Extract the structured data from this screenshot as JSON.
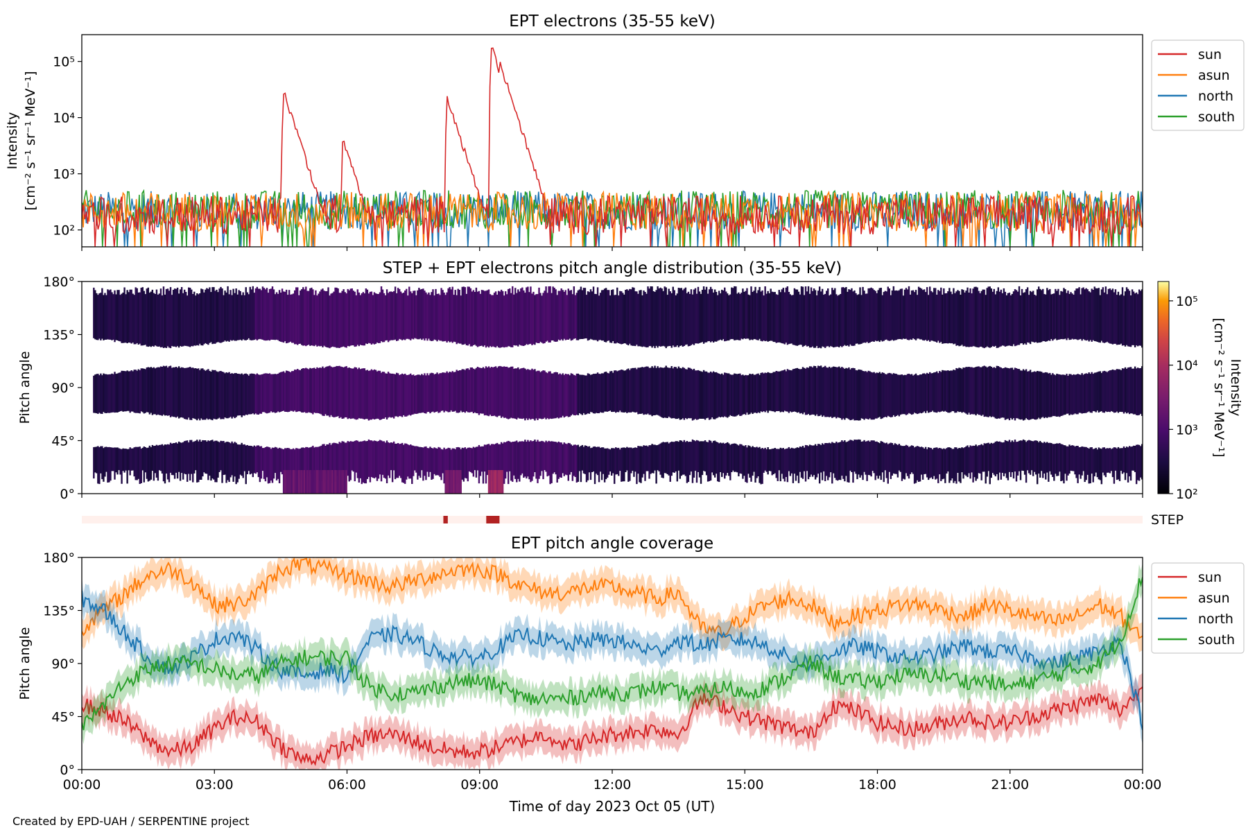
{
  "colors": {
    "sun": "#d62728",
    "asun": "#ff7f0e",
    "north": "#1f77b4",
    "south": "#2ca02c",
    "step_on": "#b22222",
    "step_off": "#fff0ec"
  },
  "credit": "Created by EPD-UAH / SERPENTINE project",
  "xaxis": {
    "label": "Time of day 2023 Oct 05 (UT)",
    "range_hours": [
      0,
      24
    ],
    "tick_hours": [
      0,
      3,
      6,
      9,
      12,
      15,
      18,
      21,
      24
    ],
    "tick_labels": [
      "00:00",
      "03:00",
      "06:00",
      "09:00",
      "12:00",
      "15:00",
      "18:00",
      "21:00",
      "00:00"
    ]
  },
  "chart_data": [
    {
      "type": "line",
      "title": "EPT electrons (35-55 keV)",
      "ylabel_line1": "Intensity",
      "ylabel_line2": "[cm⁻² s⁻¹ sr⁻¹ MeV⁻¹]",
      "yscale": "log",
      "ylim": [
        50,
        300000
      ],
      "ytick_values": [
        100,
        1000,
        10000,
        100000
      ],
      "ytick_labels": [
        "10²",
        "10³",
        "10⁴",
        "10⁵"
      ],
      "legend_position": "outside-right",
      "series": [
        {
          "name": "sun",
          "color_key": "sun",
          "baseline": 200,
          "events": [
            {
              "t": 4.55,
              "peak": 32000
            },
            {
              "t": 4.75,
              "peak": 9000
            },
            {
              "t": 5.9,
              "peak": 4200
            },
            {
              "t": 8.25,
              "peak": 25000
            },
            {
              "t": 8.4,
              "peak": 3500
            },
            {
              "t": 9.25,
              "peak": 200000
            },
            {
              "t": 9.45,
              "peak": 100000
            },
            {
              "t": 9.65,
              "peak": 12000
            },
            {
              "t": 9.9,
              "peak": 2800
            }
          ]
        },
        {
          "name": "asun",
          "color_key": "asun",
          "baseline": 230
        },
        {
          "name": "north",
          "color_key": "north",
          "baseline": 240
        },
        {
          "name": "south",
          "color_key": "south",
          "baseline": 250
        }
      ]
    },
    {
      "type": "heatmap",
      "title": "STEP + EPT electrons pitch angle distribution (35-55 keV)",
      "ylabel": "Pitch angle",
      "ylim": [
        0,
        180
      ],
      "ytick_values": [
        0,
        45,
        90,
        135,
        180
      ],
      "ytick_labels": [
        "0°",
        "45°",
        "90°",
        "135°",
        "180°"
      ],
      "colorbar": {
        "label_line1": "Intensity",
        "label_line2": "[cm⁻² s⁻¹ sr⁻¹ MeV⁻¹]",
        "scale": "log",
        "range": [
          100,
          200000
        ],
        "tick_values": [
          100,
          1000,
          10000,
          100000
        ],
        "tick_labels": [
          "10²",
          "10³",
          "10⁴",
          "10⁵"
        ]
      },
      "enhancements": [
        {
          "t0": 4.55,
          "t1": 6.0,
          "level": 2000
        },
        {
          "t0": 8.2,
          "t1": 8.6,
          "level": 3000
        },
        {
          "t0": 9.2,
          "t1": 9.55,
          "level": 8000
        }
      ]
    },
    {
      "type": "bar",
      "label": "STEP",
      "on_intervals": [
        [
          8.18,
          8.28
        ],
        [
          9.15,
          9.45
        ]
      ]
    },
    {
      "type": "area",
      "title": "EPT pitch angle coverage",
      "ylabel": "Pitch angle",
      "ylim": [
        0,
        180
      ],
      "ytick_values": [
        0,
        45,
        90,
        135,
        180
      ],
      "ytick_labels": [
        "0°",
        "45°",
        "90°",
        "135°",
        "180°"
      ],
      "legend_position": "outside-right",
      "series": [
        {
          "name": "sun",
          "color_key": "sun",
          "x": [
            0,
            0.5,
            1,
            1.5,
            2,
            2.5,
            3,
            3.5,
            4,
            4.5,
            5,
            5.5,
            6,
            6.5,
            7,
            7.5,
            8,
            8.5,
            9,
            9.5,
            10,
            10.5,
            11,
            11.5,
            12,
            12.5,
            13,
            13.5,
            14,
            14.5,
            15,
            15.5,
            16,
            16.5,
            17,
            17.5,
            18,
            18.5,
            19,
            19.5,
            20,
            20.5,
            21,
            21.5,
            22,
            22.5,
            23,
            23.5,
            24
          ],
          "values": [
            55,
            50,
            40,
            25,
            15,
            20,
            35,
            45,
            40,
            20,
            8,
            12,
            20,
            28,
            30,
            25,
            18,
            15,
            15,
            20,
            25,
            30,
            20,
            25,
            30,
            32,
            35,
            30,
            60,
            55,
            45,
            40,
            35,
            30,
            55,
            50,
            40,
            35,
            35,
            40,
            45,
            40,
            40,
            45,
            50,
            55,
            60,
            50,
            70
          ],
          "halfwidth": 12
        },
        {
          "name": "asun",
          "color_key": "asun",
          "x": [
            0,
            0.5,
            1,
            1.5,
            2,
            2.5,
            3,
            3.5,
            4,
            4.5,
            5,
            5.5,
            6,
            6.5,
            7,
            7.5,
            8,
            8.5,
            9,
            9.5,
            10,
            10.5,
            11,
            11.5,
            12,
            12.5,
            13,
            13.5,
            14,
            14.5,
            15,
            15.5,
            16,
            16.5,
            17,
            17.5,
            18,
            18.5,
            19,
            19.5,
            20,
            20.5,
            21,
            21.5,
            22,
            22.5,
            23,
            23.5,
            24
          ],
          "values": [
            120,
            135,
            150,
            165,
            170,
            160,
            140,
            140,
            150,
            170,
            175,
            170,
            165,
            160,
            155,
            160,
            165,
            170,
            170,
            165,
            155,
            150,
            150,
            155,
            155,
            150,
            145,
            150,
            120,
            115,
            130,
            140,
            145,
            140,
            125,
            130,
            135,
            140,
            140,
            135,
            130,
            140,
            135,
            130,
            125,
            130,
            140,
            130,
            110
          ],
          "halfwidth": 12
        },
        {
          "name": "north",
          "color_key": "north",
          "x": [
            0,
            0.5,
            1,
            1.5,
            2,
            2.5,
            3,
            3.5,
            4,
            4.5,
            5,
            5.5,
            6,
            6.5,
            7,
            7.5,
            8,
            8.5,
            9,
            9.5,
            10,
            10.5,
            11,
            11.5,
            12,
            12.5,
            13,
            13.5,
            14,
            14.5,
            15,
            15.5,
            16,
            16.5,
            17,
            17.5,
            18,
            18.5,
            19,
            19.5,
            20,
            20.5,
            21,
            21.5,
            22,
            22.5,
            23,
            23.5,
            24
          ],
          "values": [
            145,
            135,
            115,
            95,
            85,
            95,
            110,
            115,
            100,
            85,
            80,
            85,
            80,
            110,
            115,
            110,
            100,
            95,
            95,
            105,
            115,
            110,
            105,
            110,
            110,
            105,
            100,
            110,
            105,
            110,
            110,
            105,
            95,
            90,
            100,
            105,
            100,
            95,
            95,
            100,
            105,
            100,
            100,
            95,
            90,
            95,
            100,
            110,
            40
          ],
          "halfwidth": 12
        },
        {
          "name": "south",
          "color_key": "south",
          "x": [
            0,
            0.5,
            1,
            1.5,
            2,
            2.5,
            3,
            3.5,
            4,
            4.5,
            5,
            5.5,
            6,
            6.5,
            7,
            7.5,
            8,
            8.5,
            9,
            9.5,
            10,
            10.5,
            11,
            11.5,
            12,
            12.5,
            13,
            13.5,
            14,
            14.5,
            15,
            15.5,
            16,
            16.5,
            17,
            17.5,
            18,
            18.5,
            19,
            19.5,
            20,
            20.5,
            21,
            21.5,
            22,
            22.5,
            23,
            23.5,
            24
          ],
          "values": [
            35,
            55,
            75,
            85,
            90,
            90,
            85,
            80,
            80,
            90,
            95,
            95,
            95,
            70,
            65,
            65,
            70,
            75,
            75,
            70,
            60,
            60,
            60,
            65,
            65,
            65,
            70,
            65,
            65,
            70,
            65,
            70,
            80,
            90,
            80,
            75,
            75,
            80,
            80,
            80,
            75,
            75,
            70,
            75,
            80,
            85,
            90,
            110,
            165
          ],
          "halfwidth": 12
        }
      ]
    }
  ]
}
